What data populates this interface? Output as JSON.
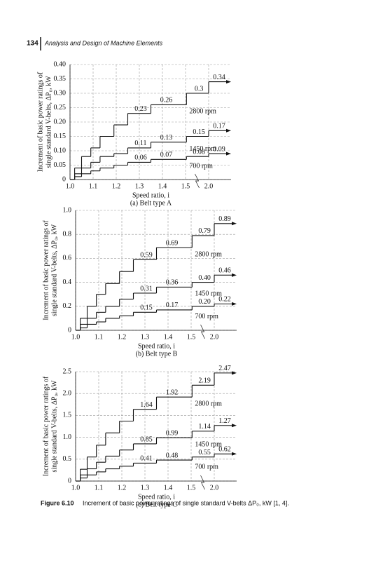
{
  "header": {
    "page_number": "134",
    "book_title": "Analysis and Design of Machine Elements"
  },
  "caption": {
    "label": "Figure 6.10",
    "text": "Increment of basic power ratings of single standard V-belts ΔP₀, kW [1, 4]."
  },
  "chart_data": [
    {
      "type": "step",
      "subtitle": "(a) Belt type A",
      "x_label": "Speed ratio, i",
      "y_label": [
        "Increment of basic power ratings of",
        "single standard V-belts, ΔP₀, kW"
      ],
      "grid": true,
      "color": "#111111",
      "x": [
        1,
        1.02,
        1.05,
        1.09,
        1.13,
        1.19,
        1.25,
        1.35,
        1.52,
        2
      ],
      "xticks": [
        {
          "value": 1,
          "label": "1.0"
        },
        1.1,
        1.2,
        1.3,
        1.4,
        1.5,
        {
          "value": 2,
          "label": "2.0"
        }
      ],
      "ylim": [
        0,
        0.4
      ],
      "yticks": [
        0,
        0.05,
        {
          "value": 0.1,
          "label": "0.10"
        },
        0.15,
        {
          "value": 0.2,
          "label": "0.20"
        },
        0.25,
        {
          "value": 0.3,
          "label": "0.30"
        },
        0.35,
        {
          "value": 0.4,
          "label": "0.40"
        }
      ],
      "series": [
        {
          "name": "2800 rpm",
          "values": [
            0,
            0.04,
            0.08,
            0.11,
            0.15,
            0.19,
            0.23,
            0.26,
            0.3,
            0.34
          ],
          "value_labels": [
            null,
            null,
            null,
            null,
            null,
            null,
            "0.23",
            "0.26",
            "0.3",
            "0.34"
          ]
        },
        {
          "name": "1450 rpm",
          "values": [
            0,
            0.02,
            0.04,
            0.06,
            0.08,
            0.09,
            0.11,
            0.13,
            0.15,
            0.17
          ],
          "value_labels": [
            null,
            null,
            null,
            null,
            null,
            null,
            "0.11",
            "0.13",
            "0.15",
            "0.17"
          ]
        },
        {
          "name": "700 rpm",
          "values": [
            0,
            0.01,
            0.02,
            0.03,
            0.04,
            0.05,
            0.06,
            0.07,
            0.08,
            0.09
          ],
          "value_labels": [
            null,
            null,
            null,
            null,
            null,
            null,
            "0.06",
            "0.07",
            "0.08",
            "0.09"
          ]
        }
      ]
    },
    {
      "type": "step",
      "subtitle": "(b) Belt type B",
      "x_label": "Speed ratio, i",
      "y_label": [
        "Increment of basic power ratings of",
        "single standard V-belts, ΔP₀, kW"
      ],
      "grid": true,
      "color": "#111111",
      "x": [
        1,
        1.02,
        1.05,
        1.09,
        1.13,
        1.19,
        1.25,
        1.35,
        1.52,
        2
      ],
      "xticks": [
        {
          "value": 1,
          "label": "1.0"
        },
        1.1,
        1.2,
        1.3,
        1.4,
        1.5,
        {
          "value": 2,
          "label": "2.0"
        }
      ],
      "ylim": [
        0,
        1
      ],
      "yticks": [
        0,
        0.2,
        0.4,
        0.6,
        0.8,
        {
          "value": 1,
          "label": "1.0"
        }
      ],
      "series": [
        {
          "name": "2800 rpm",
          "values": [
            0,
            0.1,
            0.2,
            0.3,
            0.39,
            0.49,
            0.59,
            0.69,
            0.79,
            0.89
          ],
          "value_labels": [
            null,
            null,
            null,
            null,
            null,
            null,
            "0.59",
            "0.69",
            "0.79",
            "0.89"
          ]
        },
        {
          "name": "1450 rpm",
          "values": [
            0,
            0.05,
            0.1,
            0.15,
            0.2,
            0.26,
            0.31,
            0.36,
            0.4,
            0.46
          ],
          "value_labels": [
            null,
            null,
            null,
            null,
            null,
            null,
            "0.31",
            "0.36",
            "0.40",
            "0.46"
          ]
        },
        {
          "name": "700 rpm",
          "values": [
            0,
            0.02,
            0.05,
            0.07,
            0.1,
            0.12,
            0.15,
            0.17,
            0.2,
            0.22
          ],
          "value_labels": [
            null,
            null,
            null,
            null,
            null,
            null,
            "0.15",
            "0.17",
            "0.20",
            "0.22"
          ]
        }
      ]
    },
    {
      "type": "step",
      "subtitle": "(c) Belt type C",
      "x_label": "Speed ratio, i",
      "y_label": [
        "Increment of basic power ratings of",
        "single standard V-belts, ΔP₀, kW"
      ],
      "grid": true,
      "color": "#111111",
      "x": [
        1,
        1.02,
        1.05,
        1.09,
        1.13,
        1.19,
        1.25,
        1.35,
        1.52,
        2
      ],
      "xticks": [
        {
          "value": 1,
          "label": "1.0"
        },
        1.1,
        1.2,
        1.3,
        1.4,
        1.5,
        {
          "value": 2,
          "label": "2.0"
        }
      ],
      "ylim": [
        0,
        2.5
      ],
      "yticks": [
        0,
        0.5,
        {
          "value": 1,
          "label": "1.0"
        },
        1.5,
        {
          "value": 2,
          "label": "2.0"
        },
        2.5
      ],
      "series": [
        {
          "name": "2800 rpm",
          "values": [
            0,
            0.27,
            0.55,
            0.82,
            1.1,
            1.37,
            1.64,
            1.92,
            2.19,
            2.47
          ],
          "value_labels": [
            null,
            null,
            null,
            null,
            null,
            null,
            "1.64",
            "1.92",
            "2.19",
            "2.47"
          ]
        },
        {
          "name": "1450 rpm",
          "values": [
            0,
            0.14,
            0.28,
            0.43,
            0.57,
            0.71,
            0.85,
            0.99,
            1.14,
            1.27
          ],
          "value_labels": [
            null,
            null,
            null,
            null,
            null,
            null,
            "0.85",
            "0.99",
            "1.14",
            "1.27"
          ]
        },
        {
          "name": "700 rpm",
          "values": [
            0,
            0.07,
            0.14,
            0.21,
            0.28,
            0.34,
            0.41,
            0.48,
            0.55,
            0.62
          ],
          "value_labels": [
            null,
            null,
            null,
            null,
            null,
            null,
            "0.41",
            "0.48",
            "0.55",
            "0.62"
          ]
        }
      ]
    }
  ]
}
